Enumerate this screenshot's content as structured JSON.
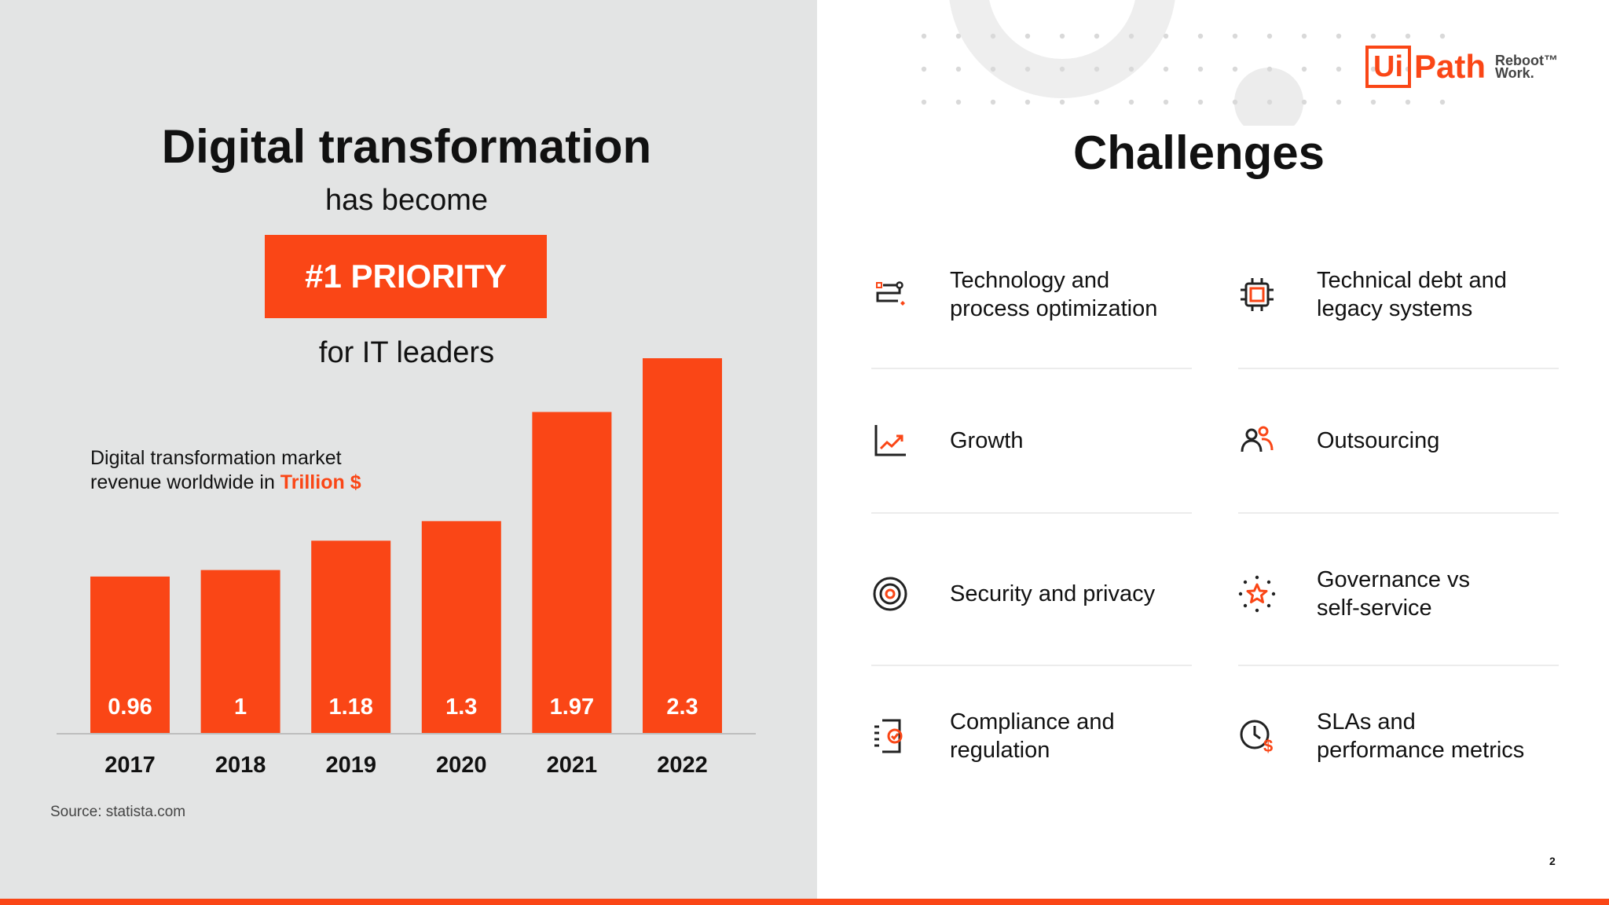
{
  "left": {
    "title": "Digital transformation",
    "subtitle": "has become",
    "priority": "#1 PRIORITY",
    "for_text": "for IT leaders",
    "caption_line1": "Digital transformation market",
    "caption_line2_prefix": "revenue worldwide in ",
    "caption_unit": "Trillion $",
    "source": "Source: statista.com"
  },
  "chart_data": {
    "type": "bar",
    "categories": [
      "2017",
      "2018",
      "2019",
      "2020",
      "2021",
      "2022"
    ],
    "values": [
      0.96,
      1,
      1.18,
      1.3,
      1.97,
      2.3
    ],
    "value_labels": [
      "0.96",
      "1",
      "1.18",
      "1.3",
      "1.97",
      "2.3"
    ],
    "title": "",
    "ylabel": "Digital transformation market revenue worldwide in Trillion $",
    "ylim": [
      0,
      2.3
    ],
    "grid": false,
    "bar_color": "#fa4616"
  },
  "right": {
    "title": "Challenges",
    "logo": {
      "ui": "Ui",
      "path": "Path",
      "tag_line1": "Reboot™",
      "tag_line2": "Work."
    },
    "page_number": "2",
    "challenges": [
      {
        "label_line1": "Technology and",
        "label_line2": "process optimization",
        "icon": "process-flow-icon"
      },
      {
        "label_line1": "Technical debt and",
        "label_line2": "legacy systems",
        "icon": "chip-icon"
      },
      {
        "label_line1": "Growth",
        "label_line2": "",
        "icon": "growth-chart-icon"
      },
      {
        "label_line1": "Outsourcing",
        "label_line2": "",
        "icon": "people-icon"
      },
      {
        "label_line1": "Security and privacy",
        "label_line2": "",
        "icon": "target-icon"
      },
      {
        "label_line1": "Governance vs",
        "label_line2": "self-service",
        "icon": "star-burst-icon"
      },
      {
        "label_line1": "Compliance and",
        "label_line2": "regulation",
        "icon": "compliance-document-icon"
      },
      {
        "label_line1": "SLAs and",
        "label_line2": "performance metrics",
        "icon": "clock-dollar-icon"
      }
    ]
  },
  "colors": {
    "accent": "#fa4616",
    "left_background": "#e3e4e4",
    "text": "#111111"
  }
}
